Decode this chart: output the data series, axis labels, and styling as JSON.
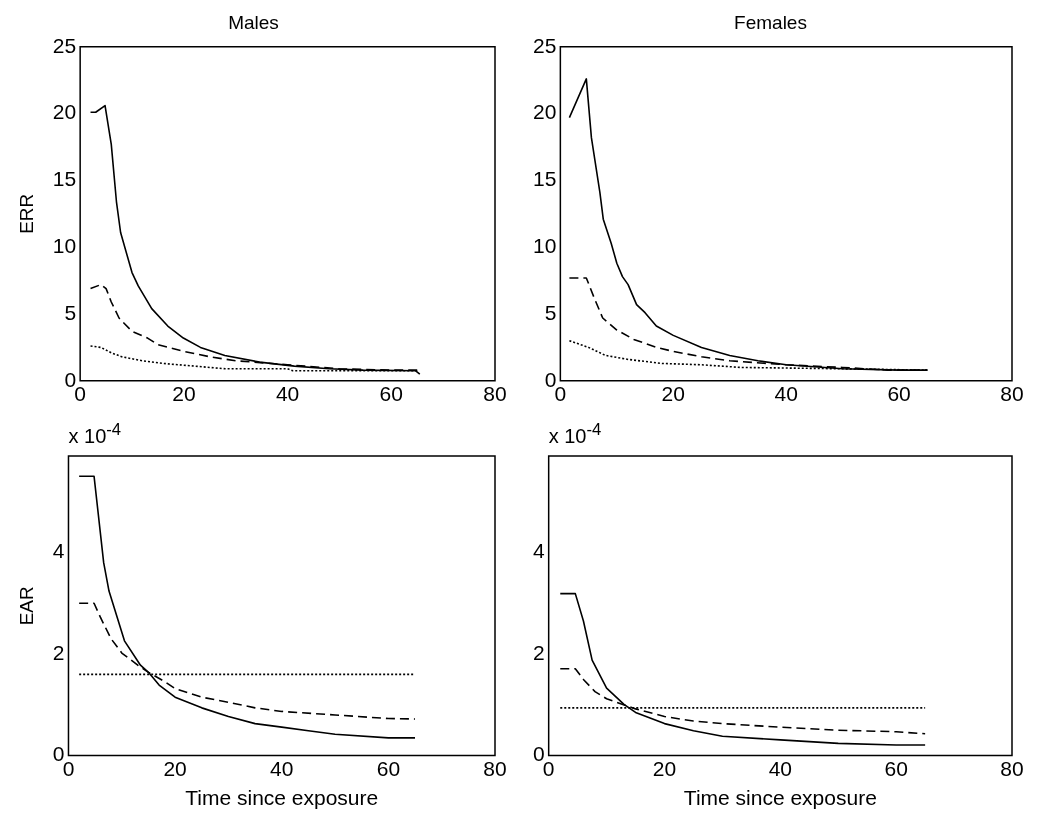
{
  "chart_data": [
    {
      "type": "line",
      "title": "Males",
      "ylabel": "ERR",
      "xlim": [
        0,
        80
      ],
      "xticks": [
        0,
        20,
        40,
        60,
        80
      ],
      "ylim": [
        0,
        25
      ],
      "yticks": [
        0,
        5,
        10,
        15,
        20,
        25
      ],
      "series": [
        {
          "color": "#000000",
          "line_style": "solid",
          "x": [
            2,
            3,
            4.8,
            6,
            7,
            7.8,
            10,
            11.2,
            13.8,
            16.9,
            19.9,
            23.2,
            27.9,
            34.6,
            41.3,
            48,
            54.6,
            64.7,
            65.5
          ],
          "values": [
            20.1,
            20.1,
            20.6,
            17.7,
            13.4,
            11.1,
            8.1,
            7.1,
            5.4,
            4.1,
            3.2,
            2.5,
            1.9,
            1.4,
            1.1,
            0.9,
            0.8,
            0.75,
            0.5
          ]
        },
        {
          "color": "#000000",
          "line_style": "dashed",
          "x": [
            2,
            4,
            5,
            6,
            7.5,
            10,
            13,
            15,
            20,
            25,
            30,
            40,
            50,
            60,
            65
          ],
          "values": [
            6.9,
            7.2,
            6.9,
            5.9,
            4.7,
            3.7,
            3.2,
            2.7,
            2.2,
            1.8,
            1.5,
            1.2,
            0.9,
            0.8,
            0.8
          ]
        },
        {
          "color": "#000000",
          "line_style": "dotted",
          "x": [
            2,
            4,
            6,
            8,
            12,
            16,
            22,
            28,
            40,
            41,
            65
          ],
          "values": [
            2.6,
            2.5,
            2.1,
            1.8,
            1.5,
            1.3,
            1.1,
            0.9,
            0.9,
            0.75,
            0.75
          ]
        }
      ]
    },
    {
      "type": "line",
      "title": "Females",
      "xlim": [
        0,
        80
      ],
      "xticks": [
        0,
        20,
        40,
        60,
        80
      ],
      "ylim": [
        0,
        25
      ],
      "yticks": [
        0,
        5,
        10,
        15,
        20,
        25
      ],
      "series": [
        {
          "color": "#000000",
          "line_style": "solid",
          "x": [
            1.6,
            4.6,
            5.5,
            7,
            7.6,
            9,
            10,
            11,
            12,
            13.5,
            15,
            17,
            20,
            25,
            30,
            35,
            40,
            50,
            60,
            65
          ],
          "values": [
            19.7,
            22.6,
            18.2,
            14.1,
            12.1,
            10.3,
            8.8,
            7.8,
            7.2,
            5.7,
            5.1,
            4.1,
            3.4,
            2.5,
            1.9,
            1.5,
            1.2,
            0.9,
            0.8,
            0.8
          ]
        },
        {
          "color": "#000000",
          "line_style": "dashed",
          "x": [
            1.6,
            4.6,
            6,
            7.5,
            10,
            13,
            17,
            20,
            25,
            30,
            40,
            50,
            58,
            65
          ],
          "values": [
            7.7,
            7.7,
            6.2,
            4.7,
            3.8,
            3.1,
            2.5,
            2.2,
            1.8,
            1.5,
            1.2,
            1.0,
            0.8,
            0.8
          ]
        },
        {
          "color": "#000000",
          "line_style": "dotted",
          "x": [
            1.6,
            5,
            8,
            12,
            18,
            25,
            32,
            50,
            65
          ],
          "values": [
            3.0,
            2.5,
            1.9,
            1.6,
            1.3,
            1.2,
            1.0,
            0.9,
            0.8
          ]
        }
      ]
    },
    {
      "type": "line",
      "ylabel": "EAR",
      "xlabel": "Time since exposure",
      "annotations": [
        "x 10$^{-4}$"
      ],
      "xlim": [
        0,
        80
      ],
      "xticks": [
        0,
        20,
        40,
        60,
        80
      ],
      "ylim": [
        0,
        5.9
      ],
      "yticks": [
        0,
        2,
        4
      ],
      "series": [
        {
          "color": "#000000",
          "line_style": "solid",
          "x": [
            2,
            4.8,
            6.6,
            7.6,
            10.5,
            13.5,
            15,
            17,
            20,
            25,
            30,
            35,
            40,
            45,
            50,
            60,
            65
          ],
          "values": [
            5.5,
            5.5,
            3.8,
            3.24,
            2.26,
            1.78,
            1.64,
            1.39,
            1.15,
            0.94,
            0.77,
            0.63,
            0.56,
            0.49,
            0.42,
            0.35,
            0.35
          ]
        },
        {
          "color": "#000000",
          "line_style": "dashed",
          "x": [
            2,
            4.8,
            6,
            8,
            10,
            13,
            15,
            18,
            20,
            25,
            30,
            35,
            40,
            50,
            60,
            65
          ],
          "values": [
            3.0,
            3.0,
            2.72,
            2.3,
            2.02,
            1.78,
            1.64,
            1.46,
            1.32,
            1.15,
            1.05,
            0.94,
            0.87,
            0.8,
            0.73,
            0.72
          ]
        },
        {
          "color": "#000000",
          "line_style": "dotted",
          "x": [
            2,
            65
          ],
          "values": [
            1.6,
            1.6
          ]
        }
      ]
    },
    {
      "type": "line",
      "xlabel": "Time since exposure",
      "annotations": [
        "x 10$^{-4}$"
      ],
      "xlim": [
        0,
        80
      ],
      "xticks": [
        0,
        20,
        40,
        60,
        80
      ],
      "ylim": [
        0,
        5.9
      ],
      "yticks": [
        0,
        2,
        4
      ],
      "series": [
        {
          "color": "#000000",
          "line_style": "solid",
          "x": [
            2,
            4.6,
            6,
            7.5,
            10,
            13,
            15,
            20,
            25,
            30,
            40,
            50,
            60,
            65
          ],
          "values": [
            3.19,
            3.19,
            2.65,
            1.88,
            1.33,
            1.01,
            0.85,
            0.63,
            0.49,
            0.38,
            0.31,
            0.24,
            0.21,
            0.21
          ]
        },
        {
          "color": "#000000",
          "line_style": "dashed",
          "x": [
            2,
            4.6,
            6,
            8,
            10,
            15,
            20,
            25,
            30,
            40,
            50,
            60,
            65
          ],
          "values": [
            1.71,
            1.71,
            1.5,
            1.26,
            1.12,
            0.92,
            0.77,
            0.68,
            0.63,
            0.56,
            0.5,
            0.47,
            0.43
          ]
        },
        {
          "color": "#000000",
          "line_style": "dotted",
          "x": [
            2,
            65
          ],
          "values": [
            0.94,
            0.94
          ]
        }
      ]
    }
  ]
}
